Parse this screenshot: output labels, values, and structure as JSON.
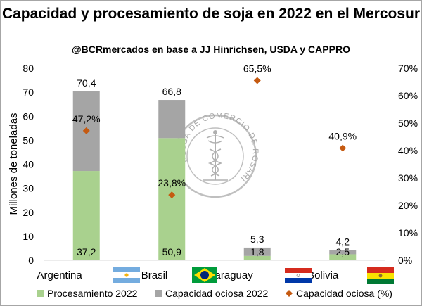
{
  "chart_data": {
    "type": "bar",
    "title": "Capacidad y procesamiento de soja en 2022 en el Mercosur",
    "subtitle": "@BCRmercados en base a JJ Hinrichsen, USDA y CAPPRO",
    "ylabel": "Millones de toneladas",
    "ylim": [
      0,
      80
    ],
    "y2lim": [
      0,
      70
    ],
    "yticks": [
      "0",
      "10",
      "20",
      "30",
      "40",
      "50",
      "60",
      "70",
      "80"
    ],
    "y2ticks": [
      "0%",
      "10%",
      "20%",
      "30%",
      "40%",
      "50%",
      "60%",
      "70%"
    ],
    "categories": [
      "Argentina",
      "Brasil",
      "Paraguay",
      "Bolivia"
    ],
    "totals_labels": [
      "70,4",
      "66,8",
      "5,3",
      "4,2"
    ],
    "series": [
      {
        "name": "Procesamiento 2022",
        "kind": "bar",
        "color": "#a9d18e",
        "values": [
          37.2,
          50.9,
          1.8,
          2.5
        ],
        "labels": [
          "37,2",
          "50,9",
          "1,8",
          "2,5"
        ]
      },
      {
        "name": "Capacidad ociosa 2022",
        "kind": "bar",
        "color": "#a5a5a5",
        "values": [
          33.2,
          15.9,
          3.5,
          1.7
        ]
      },
      {
        "name": "Capacidad ociosa (%)",
        "kind": "marker",
        "axis": "right",
        "color": "#c55a11",
        "values": [
          47.2,
          23.8,
          65.5,
          40.9
        ],
        "labels": [
          "47,2%",
          "23,8%",
          "65,5%",
          "40,9%"
        ]
      }
    ],
    "watermark": "BOLSA DE COMERCIO DE ROSARIO",
    "legend_position": "bottom",
    "grid": false
  }
}
